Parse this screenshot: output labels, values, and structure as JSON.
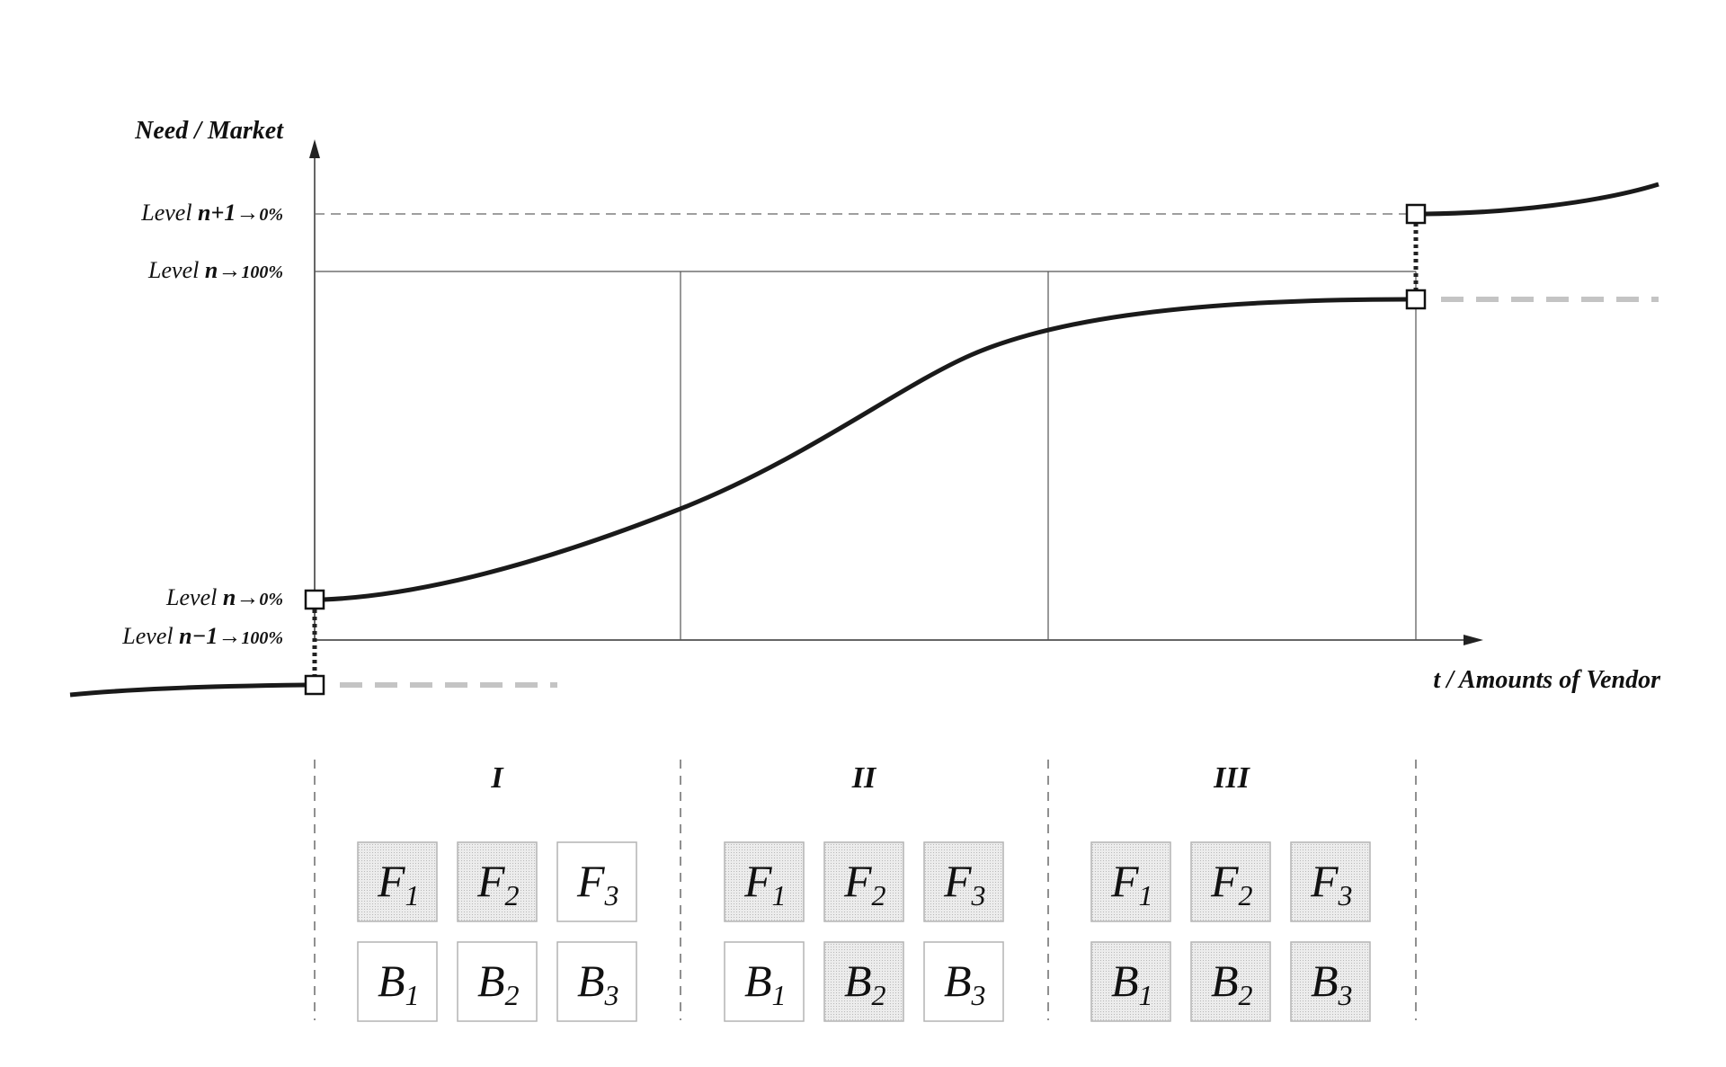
{
  "axes": {
    "y_title": "Need / Market",
    "x_title": "t / Amounts of Vendor"
  },
  "levels": [
    {
      "id": "n_plus_1_0",
      "prefix": "Level ",
      "var": "n+1",
      "arrow": "→",
      "pct": "0%"
    },
    {
      "id": "n_100",
      "prefix": "Level ",
      "var": "n",
      "arrow": "→",
      "pct": "100%"
    },
    {
      "id": "n_0",
      "prefix": "Level ",
      "var": "n",
      "arrow": "→",
      "pct": "0%"
    },
    {
      "id": "n_minus_1_100",
      "prefix": "Level ",
      "var": "n−1",
      "arrow": "→",
      "pct": "100%"
    }
  ],
  "phases": [
    {
      "label": "I",
      "f_boxes": [
        {
          "letter": "F",
          "sub": "1",
          "shaded": true
        },
        {
          "letter": "F",
          "sub": "2",
          "shaded": true
        },
        {
          "letter": "F",
          "sub": "3",
          "shaded": false
        }
      ],
      "b_boxes": [
        {
          "letter": "B",
          "sub": "1",
          "shaded": false
        },
        {
          "letter": "B",
          "sub": "2",
          "shaded": false
        },
        {
          "letter": "B",
          "sub": "3",
          "shaded": false
        }
      ]
    },
    {
      "label": "II",
      "f_boxes": [
        {
          "letter": "F",
          "sub": "1",
          "shaded": true
        },
        {
          "letter": "F",
          "sub": "2",
          "shaded": true
        },
        {
          "letter": "F",
          "sub": "3",
          "shaded": true
        }
      ],
      "b_boxes": [
        {
          "letter": "B",
          "sub": "1",
          "shaded": false
        },
        {
          "letter": "B",
          "sub": "2",
          "shaded": true
        },
        {
          "letter": "B",
          "sub": "3",
          "shaded": false
        }
      ]
    },
    {
      "label": "III",
      "f_boxes": [
        {
          "letter": "F",
          "sub": "1",
          "shaded": true
        },
        {
          "letter": "F",
          "sub": "2",
          "shaded": true
        },
        {
          "letter": "F",
          "sub": "3",
          "shaded": true
        }
      ],
      "b_boxes": [
        {
          "letter": "B",
          "sub": "1",
          "shaded": true
        },
        {
          "letter": "B",
          "sub": "2",
          "shaded": true
        },
        {
          "letter": "B",
          "sub": "3",
          "shaded": true
        }
      ]
    }
  ],
  "colors": {
    "curve": "#1a1a1a",
    "box_shaded": "#e6e6e6",
    "box_plain": "#ffffff",
    "box_border": "#b4b4b4",
    "guide_dashed": "#c4c4c4"
  }
}
